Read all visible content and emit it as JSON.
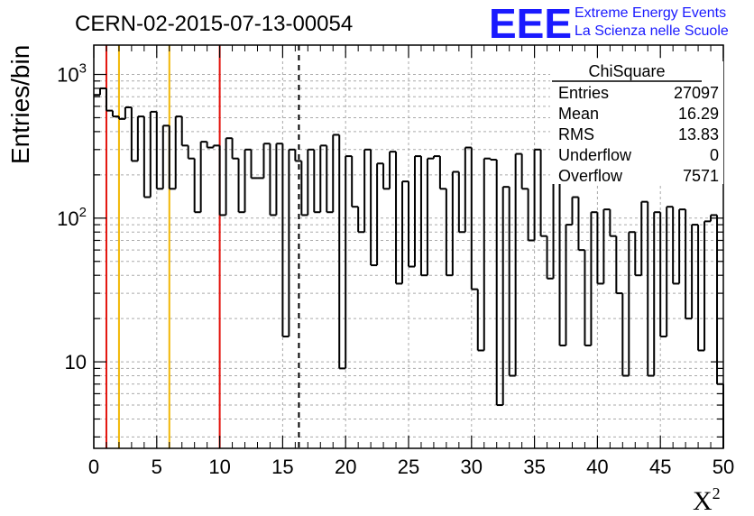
{
  "chart_data": {
    "type": "histogram",
    "title": "CERN-02-2015-07-13-00054",
    "xlabel": "X",
    "xlabel_sup": "2",
    "ylabel": "Entries/bin",
    "xlim": [
      0,
      50
    ],
    "ylim": [
      2.5,
      1600
    ],
    "yscale": "log",
    "grid": true,
    "bin_width": 0.5,
    "bin_start": 0,
    "values": [
      720,
      800,
      560,
      510,
      490,
      590,
      250,
      510,
      140,
      550,
      160,
      440,
      160,
      510,
      320,
      260,
      110,
      340,
      310,
      320,
      105,
      360,
      260,
      110,
      300,
      190,
      190,
      330,
      105,
      330,
      15,
      300,
      250,
      105,
      300,
      110,
      320,
      110,
      380,
      9,
      270,
      120,
      80,
      300,
      47,
      240,
      160,
      290,
      35,
      180,
      46,
      270,
      40,
      260,
      270,
      160,
      40,
      210,
      80,
      310,
      32,
      12,
      260,
      255,
      5,
      165,
      8,
      280,
      160,
      70,
      300,
      75,
      38,
      260,
      13,
      90,
      140,
      60,
      13,
      110,
      35,
      115,
      75,
      30,
      8,
      80,
      40,
      130,
      8,
      110,
      15,
      120,
      35,
      115,
      20,
      90,
      12,
      95,
      105,
      7
    ],
    "x_ticks": [
      "0",
      "5",
      "10",
      "15",
      "20",
      "25",
      "30",
      "35",
      "40",
      "45",
      "50"
    ],
    "y_major_ticks": [
      {
        "value": 10,
        "base": "10",
        "exp": ""
      },
      {
        "value": 100,
        "base": "10",
        "exp": "2"
      },
      {
        "value": 1000,
        "base": "10",
        "exp": "3"
      }
    ],
    "vlines": [
      {
        "x": 1,
        "color": "#e3120b",
        "style": "solid"
      },
      {
        "x": 2,
        "color": "#f2b705",
        "style": "solid"
      },
      {
        "x": 6,
        "color": "#f2b705",
        "style": "solid"
      },
      {
        "x": 10,
        "color": "#e3120b",
        "style": "solid"
      },
      {
        "x": 16.29,
        "color": "#000000",
        "style": "dashed"
      }
    ],
    "stats": {
      "title": "ChiSquare",
      "rows": [
        {
          "label": "Entries",
          "value": "27097"
        },
        {
          "label": "Mean",
          "value": "16.29"
        },
        {
          "label": "RMS",
          "value": "13.83"
        },
        {
          "label": "Underflow",
          "value": "0"
        },
        {
          "label": "Overflow",
          "value": "7571"
        }
      ]
    },
    "logo": {
      "letters": "EEE",
      "line1": "Extreme Energy Events",
      "line2": "La Scienza nelle Scuole",
      "color": "#1a1aff"
    }
  }
}
